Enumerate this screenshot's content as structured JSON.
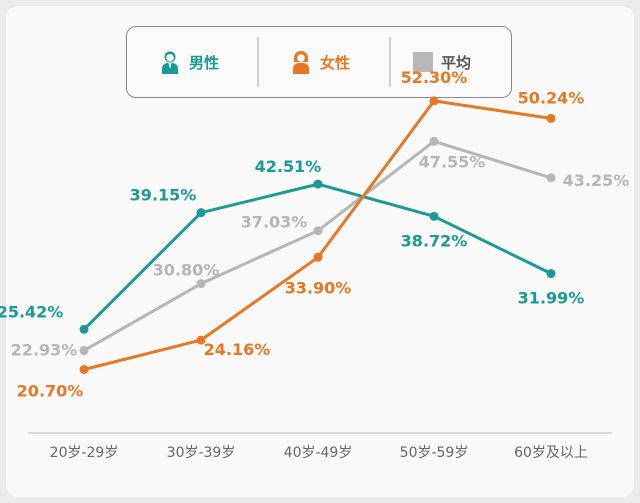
{
  "legend": {
    "male": {
      "label": "男性",
      "icon": "male-person-icon",
      "color": "#1a9a96"
    },
    "female": {
      "label": "女性",
      "icon": "female-person-icon",
      "color": "#e87722"
    },
    "avg": {
      "label": "平均",
      "icon": "gray-square-icon",
      "color": "#b5b5b5"
    }
  },
  "chart_data": {
    "type": "line",
    "categories": [
      "20岁-29岁",
      "30岁-39岁",
      "40岁-49岁",
      "50岁-59岁",
      "60岁及以上"
    ],
    "series": [
      {
        "name": "男性",
        "color": "#1a9a96",
        "values": [
          25.42,
          39.15,
          42.51,
          38.72,
          31.99
        ],
        "labels": [
          "25.42%",
          "39.15%",
          "42.51%",
          "38.72%",
          "31.99%"
        ]
      },
      {
        "name": "女性",
        "color": "#e87722",
        "values": [
          20.7,
          24.16,
          33.9,
          52.3,
          50.24
        ],
        "labels": [
          "20.70%",
          "24.16%",
          "33.90%",
          "52.30%",
          "50.24%"
        ]
      },
      {
        "name": "平均",
        "color": "#b5b5b5",
        "values": [
          22.93,
          30.8,
          37.03,
          47.55,
          43.25
        ],
        "labels": [
          "22.93%",
          "30.80%",
          "37.03%",
          "47.55%",
          "43.25%"
        ]
      }
    ],
    "grid": false,
    "legend_position": "top"
  }
}
